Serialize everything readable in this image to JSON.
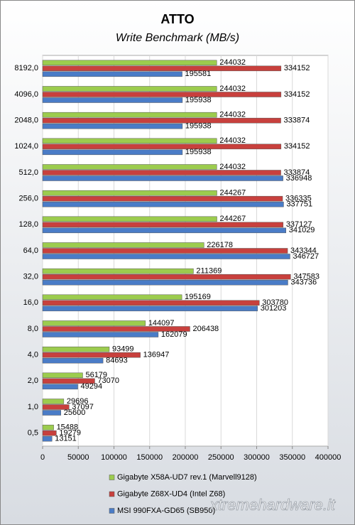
{
  "chart_data": {
    "type": "bar",
    "orientation": "horizontal",
    "title": "ATTO",
    "subtitle": "Write Benchmark (MB/s)",
    "categories": [
      "8192,0",
      "4096,0",
      "2048,0",
      "1024,0",
      "512,0",
      "256,0",
      "128,0",
      "64,0",
      "32,0",
      "16,0",
      "8,0",
      "4,0",
      "2,0",
      "1,0",
      "0,5"
    ],
    "series": [
      {
        "name": "Gigabyte X58A-UD7 rev.1 (Marvell9128)",
        "color": "#9ccc4e",
        "values": [
          244032,
          244032,
          244032,
          244032,
          244032,
          244267,
          244267,
          226178,
          211369,
          195169,
          144097,
          93499,
          56179,
          29696,
          15488
        ]
      },
      {
        "name": "Gigabyte Z68X-UD4 (Intel Z68)",
        "color": "#c8403d",
        "values": [
          334152,
          334152,
          333874,
          334152,
          333874,
          336335,
          337127,
          343344,
          347583,
          303780,
          206438,
          136947,
          73070,
          37097,
          19279
        ]
      },
      {
        "name": "MSI 990FXA-GD65 (SB950)",
        "color": "#4a7cc7",
        "values": [
          195581,
          195938,
          195938,
          195938,
          336948,
          337751,
          341029,
          346727,
          343736,
          301203,
          162079,
          84693,
          49294,
          25600,
          13151
        ]
      }
    ],
    "xlim": [
      0,
      400000
    ],
    "xticks": [
      0,
      50000,
      100000,
      150000,
      200000,
      250000,
      300000,
      350000,
      400000
    ],
    "grid": true,
    "annotation": "xtremehardware.it"
  }
}
